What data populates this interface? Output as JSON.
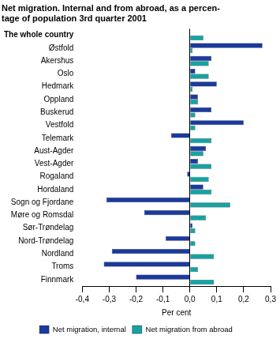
{
  "chart_data": {
    "type": "bar",
    "orientation": "horizontal",
    "title": [
      "Net migration. Internal and from abroad, as a percen-",
      "tage of population 3rd quarter 2001"
    ],
    "x_label": "Per cent",
    "categories": [
      "The whole country",
      "Østfold",
      "Akershus",
      "Oslo",
      "Hedmark",
      "Oppland",
      "Buskerud",
      "Vestfold",
      "Telemark",
      "Aust-Agder",
      "Vest-Agder",
      "Rogaland",
      "Hordaland",
      "Sogn og Fjordane",
      "Møre og Romsdal",
      "Sør-Trøndelag",
      "Nord-Trøndelag",
      "Nordland",
      "Troms",
      "Finnmark"
    ],
    "series": [
      {
        "name": "Net migration, internal",
        "color": "#1a3a9c",
        "values": [
          0,
          0.27,
          0.08,
          0.02,
          0.1,
          0.03,
          0.08,
          0.2,
          -0.07,
          0.06,
          0.03,
          -0.01,
          0.05,
          -0.31,
          -0.17,
          0.01,
          -0.09,
          -0.29,
          -0.32,
          -0.2
        ]
      },
      {
        "name": "Net migration from abroad",
        "color": "#16a3a0",
        "values": [
          0.05,
          0.01,
          0.07,
          0.07,
          0.01,
          0.03,
          0.02,
          0.02,
          0.08,
          0.05,
          0.08,
          0.07,
          0.08,
          0.15,
          0.06,
          0.02,
          0.02,
          0.09,
          0.03,
          0.09
        ]
      }
    ],
    "xlim": [
      -0.4,
      0.3
    ],
    "xticks": [
      {
        "value": -0.4,
        "label": "-0,4"
      },
      {
        "value": -0.3,
        "label": "-0,3"
      },
      {
        "value": -0.2,
        "label": "-0,2"
      },
      {
        "value": -0.1,
        "label": "-0,1"
      },
      {
        "value": 0,
        "label": "0,0"
      },
      {
        "value": 0.1,
        "label": "0,1"
      },
      {
        "value": 0.2,
        "label": "0,2"
      },
      {
        "value": 0.3,
        "label": "0,3"
      }
    ],
    "grid": false,
    "legend": "bottom"
  }
}
